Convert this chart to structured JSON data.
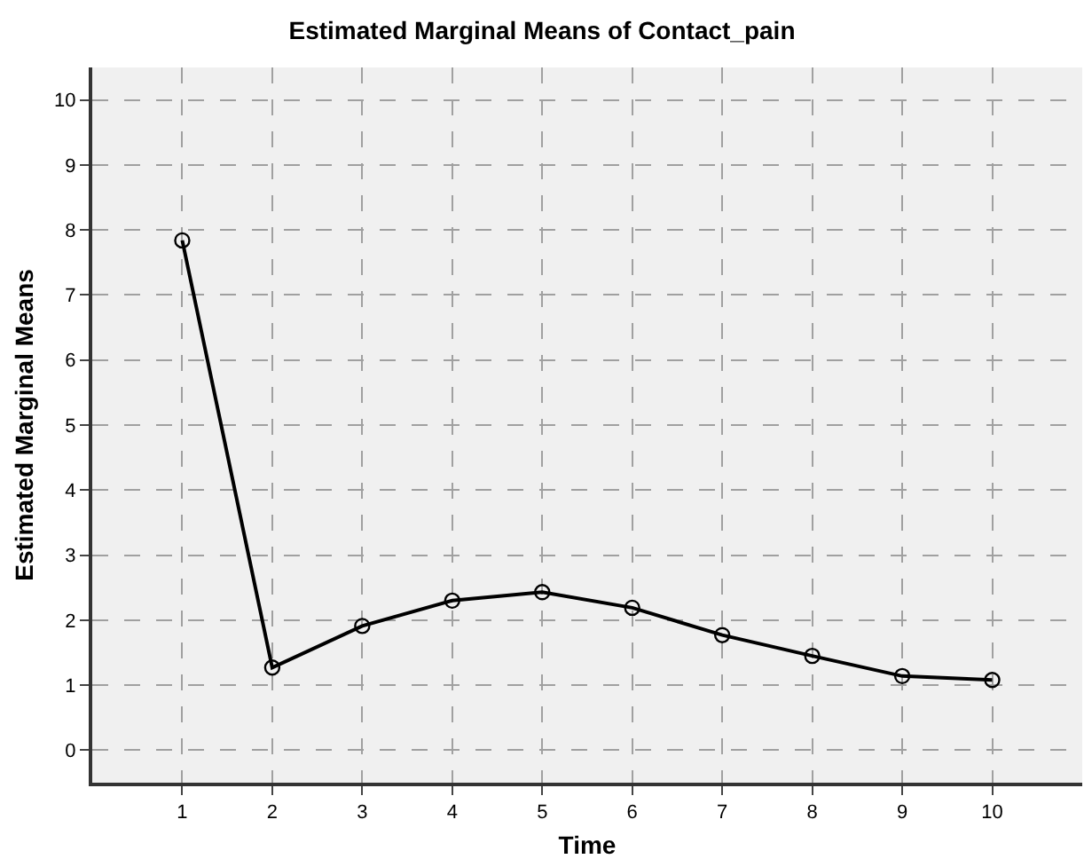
{
  "chart_data": {
    "type": "line",
    "title": "Estimated Marginal Means of Contact_pain",
    "xlabel": "Time",
    "ylabel": "Estimated Marginal Means",
    "x": [
      1,
      2,
      3,
      4,
      5,
      6,
      7,
      8,
      9,
      10
    ],
    "series": [
      {
        "color": "#000000",
        "values": [
          7.84,
          1.27,
          1.91,
          2.3,
          2.43,
          2.19,
          1.77,
          1.45,
          1.14,
          1.08
        ]
      }
    ],
    "xlim": [
      0,
      11
    ],
    "xticks": [
      1,
      2,
      3,
      4,
      5,
      6,
      7,
      8,
      9,
      10
    ],
    "ylim": [
      -0.5,
      10.5
    ],
    "yticks": [
      0,
      1,
      2,
      3,
      4,
      5,
      6,
      7,
      8,
      9,
      10
    ],
    "grid": true,
    "marker": "circle",
    "line_style": "solid"
  }
}
